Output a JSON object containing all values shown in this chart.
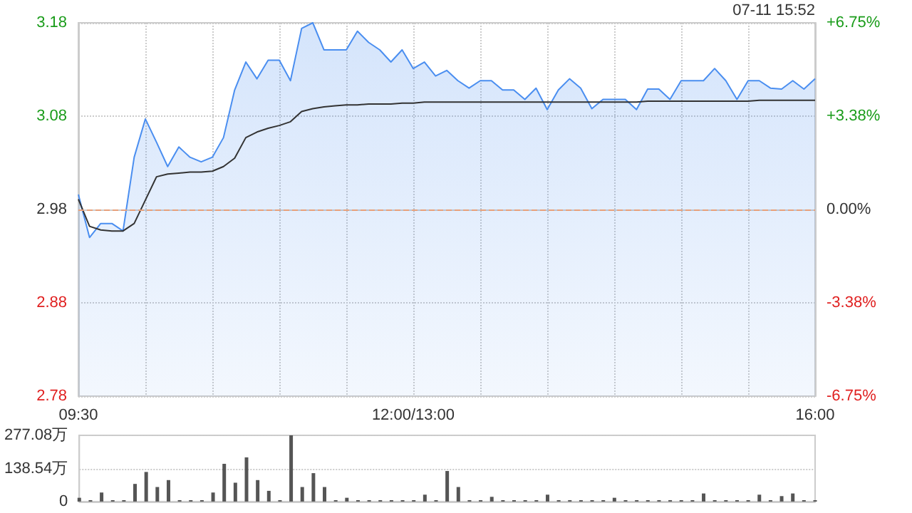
{
  "chart_data": [
    {
      "type": "area",
      "annotations": [
        "07-11 15:52"
      ],
      "categories": [
        "09:30",
        null,
        null,
        null,
        null,
        null,
        null,
        null,
        null,
        null,
        null,
        null,
        null,
        null,
        null,
        null,
        null,
        null,
        null,
        null,
        null,
        null,
        null,
        null,
        null,
        null,
        null,
        null,
        null,
        null,
        "12:00/13:00",
        null,
        null,
        null,
        null,
        null,
        null,
        null,
        null,
        null,
        null,
        null,
        null,
        null,
        null,
        null,
        null,
        null,
        null,
        null,
        null,
        null,
        null,
        null,
        null,
        null,
        null,
        null,
        null,
        null,
        null,
        null,
        null,
        null,
        null,
        null,
        "16:00"
      ],
      "ylim": [
        2.78,
        3.18
      ],
      "yticks": [
        2.78,
        2.88,
        2.98,
        3.08,
        3.18
      ],
      "y2lim": [
        -6.75,
        6.75
      ],
      "y2ticks": [
        {
          "value": -6.75,
          "label": "-6.75%"
        },
        {
          "value": -3.38,
          "label": "-3.38%"
        },
        {
          "value": 0,
          "label": "0.00%"
        },
        {
          "value": 3.38,
          "label": "+3.38%"
        },
        {
          "value": 6.75,
          "label": "+6.75%"
        }
      ],
      "grid": true,
      "marker": "none",
      "ref_lines": [
        {
          "axis": "y",
          "value": 2.98,
          "color": "#e8a07a",
          "line_style": "dashed"
        }
      ],
      "series": [
        {
          "type": "area",
          "color": "#4a8ef0",
          "values": [
            2.996,
            2.95,
            2.965,
            2.965,
            2.957,
            3.036,
            3.077,
            3.052,
            3.026,
            3.047,
            3.036,
            3.031,
            3.036,
            3.057,
            3.108,
            3.138,
            3.12,
            3.14,
            3.14,
            3.118,
            3.174,
            3.18,
            3.151,
            3.151,
            3.151,
            3.171,
            3.159,
            3.151,
            3.138,
            3.151,
            3.131,
            3.138,
            3.123,
            3.129,
            3.118,
            3.11,
            3.118,
            3.118,
            3.108,
            3.108,
            3.098,
            3.11,
            3.087,
            3.108,
            3.12,
            3.11,
            3.088,
            3.098,
            3.098,
            3.098,
            3.087,
            3.109,
            3.109,
            3.098,
            3.118,
            3.118,
            3.118,
            3.131,
            3.118,
            3.098,
            3.118,
            3.118,
            3.11,
            3.109,
            3.118,
            3.109,
            3.12
          ]
        },
        {
          "type": "line",
          "color": "#333333",
          "values": [
            2.991,
            2.962,
            2.958,
            2.957,
            2.957,
            2.965,
            2.99,
            3.015,
            3.018,
            3.019,
            3.02,
            3.02,
            3.021,
            3.026,
            3.035,
            3.057,
            3.063,
            3.067,
            3.07,
            3.074,
            3.085,
            3.088,
            3.09,
            3.091,
            3.092,
            3.092,
            3.093,
            3.093,
            3.093,
            3.094,
            3.094,
            3.095,
            3.095,
            3.095,
            3.095,
            3.095,
            3.095,
            3.095,
            3.095,
            3.095,
            3.095,
            3.095,
            3.095,
            3.095,
            3.095,
            3.095,
            3.095,
            3.095,
            3.095,
            3.095,
            3.095,
            3.096,
            3.096,
            3.096,
            3.096,
            3.096,
            3.096,
            3.096,
            3.096,
            3.096,
            3.096,
            3.097,
            3.097,
            3.097,
            3.097,
            3.097,
            3.097
          ]
        }
      ]
    },
    {
      "type": "bar",
      "color": "#555555",
      "categories": [
        null,
        null,
        null,
        null,
        null,
        null,
        null,
        null,
        null,
        null,
        null,
        null,
        null,
        null,
        null,
        null,
        null,
        null,
        null,
        null,
        null,
        null,
        null,
        null,
        null,
        null,
        null,
        null,
        null,
        null,
        null,
        null,
        null,
        null,
        null,
        null,
        null,
        null,
        null,
        null,
        null,
        null,
        null,
        null,
        null,
        null,
        null,
        null,
        null,
        null,
        null,
        null,
        null,
        null,
        null,
        null,
        null,
        null,
        null,
        null,
        null,
        null,
        null,
        null,
        null,
        null,
        null
      ],
      "ylim": [
        0,
        277.08
      ],
      "yticks": [
        0,
        {
          "value": 138.54,
          "label": "138.54万"
        },
        {
          "value": 277.08,
          "label": "277.08万"
        }
      ],
      "grid": "y",
      "values": [
        16,
        6,
        38,
        6,
        6,
        74,
        124,
        61,
        90,
        6,
        6,
        6,
        38,
        158,
        79,
        185,
        90,
        45,
        6,
        277,
        61,
        119,
        61,
        6,
        16,
        6,
        6,
        6,
        6,
        6,
        6,
        29,
        6,
        128,
        61,
        6,
        6,
        20,
        6,
        6,
        6,
        6,
        29,
        6,
        6,
        6,
        6,
        6,
        16,
        6,
        6,
        6,
        6,
        6,
        6,
        6,
        34,
        6,
        6,
        6,
        6,
        29,
        6,
        23,
        34,
        6,
        6
      ]
    }
  ]
}
